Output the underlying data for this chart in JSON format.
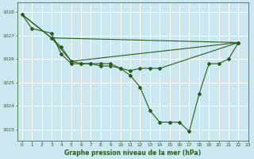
{
  "bg_color": "#cbe8f0",
  "grid_color": "#ffffff",
  "line_color": "#2d5a1b",
  "title": "Graphe pression niveau de la mer (hPa)",
  "xlim": [
    -0.5,
    23
  ],
  "ylim": [
    1022.5,
    1028.4
  ],
  "yticks": [
    1023,
    1024,
    1025,
    1026,
    1027,
    1028
  ],
  "xticks": [
    0,
    1,
    2,
    3,
    4,
    5,
    6,
    7,
    8,
    9,
    10,
    11,
    12,
    13,
    14,
    15,
    16,
    17,
    18,
    19,
    20,
    21,
    22,
    23
  ],
  "series1_x": [
    0,
    1,
    3,
    4,
    5,
    6,
    7,
    8,
    9,
    10,
    11,
    12,
    13,
    14,
    15,
    16,
    17,
    18,
    19,
    20,
    21,
    22
  ],
  "series1_y": [
    1027.9,
    1027.3,
    1027.1,
    1026.2,
    1025.8,
    1025.8,
    1025.8,
    1025.8,
    1025.8,
    1025.6,
    1025.3,
    1024.8,
    1023.8,
    1023.3,
    1023.3,
    1023.3,
    1022.9,
    1024.5,
    1025.8,
    1025.8,
    1026.0,
    1026.7
  ],
  "series2_x": [
    3,
    4,
    5,
    6,
    7,
    8,
    9,
    10,
    11,
    12,
    13,
    14,
    22
  ],
  "series2_y": [
    1026.9,
    1026.5,
    1025.9,
    1025.8,
    1025.8,
    1025.7,
    1025.7,
    1025.6,
    1025.5,
    1025.6,
    1025.6,
    1025.6,
    1026.7
  ],
  "series3_x": [
    0,
    3,
    22
  ],
  "series3_y": [
    1027.9,
    1026.9,
    1026.7
  ],
  "series4_x": [
    0,
    3,
    5,
    22
  ],
  "series4_y": [
    1027.9,
    1026.9,
    1025.9,
    1026.7
  ]
}
